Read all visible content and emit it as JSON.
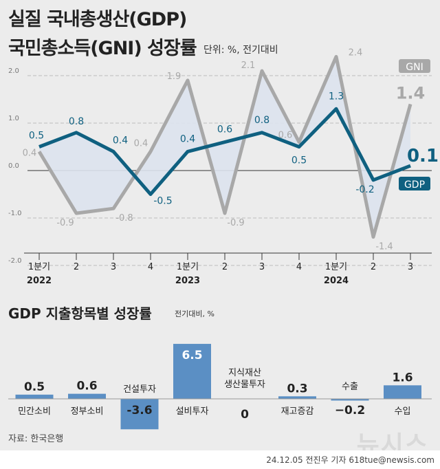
{
  "header": {
    "title_line1": "실질 국내총생산(GDP)",
    "title_line2": "국민총소득(GNI) 성장률",
    "unit": "단위: %, 전기대비"
  },
  "section2": {
    "title": "GDP 지출항목별 성장률",
    "unit": "전기대비, %"
  },
  "footer": {
    "source": "자료: 한국은행",
    "credit": "24.12.05 전진우 기자 618tue@newsis.com",
    "logo": "뉴시스"
  },
  "colors": {
    "gdp": "#0f6080",
    "gni": "#a8a8a8",
    "fill": "#dde3ee",
    "bar": "#5b8fc4",
    "background": "#ececec"
  },
  "chart_data": [
    {
      "type": "line",
      "categories": [
        "1분기",
        "2",
        "3",
        "4",
        "1분기",
        "2",
        "3",
        "4",
        "1분기",
        "2",
        "3"
      ],
      "years": [
        {
          "label": "2022",
          "index": 0
        },
        {
          "label": "2023",
          "index": 4
        },
        {
          "label": "2024",
          "index": 8
        }
      ],
      "yticks": [
        "2.0",
        "1.0",
        "0.0",
        "-1.0",
        "-2.0"
      ],
      "ylim": [
        -2.0,
        2.0
      ],
      "grid": true,
      "series": [
        {
          "name": "GDP",
          "values": [
            0.5,
            0.8,
            0.4,
            -0.5,
            0.4,
            0.6,
            0.8,
            0.5,
            1.3,
            -0.2,
            0.1
          ],
          "labels": [
            "0.5",
            "0.8",
            "0.4",
            "-0.5",
            "0.4",
            "0.6",
            "0.8",
            "0.5",
            "1.3",
            "-0.2",
            "0.1"
          ]
        },
        {
          "name": "GNI",
          "values": [
            0.4,
            -0.9,
            -0.8,
            0.4,
            1.9,
            -0.9,
            2.1,
            0.6,
            2.4,
            -1.4,
            1.4
          ],
          "labels": [
            "0.4",
            "-0.9",
            "-0.8",
            "0.4",
            "1.9",
            "-0.9",
            "2.1",
            "0.6",
            "2.4",
            "-1.4",
            "1.4"
          ]
        }
      ]
    },
    {
      "type": "bar",
      "categories": [
        "민간소비",
        "정부소비",
        "건설투자",
        "설비투자",
        "지식재산\n생산물투자",
        "재고증감",
        "수출",
        "수입"
      ],
      "values": [
        0.5,
        0.6,
        -3.6,
        6.5,
        0,
        0.3,
        -0.2,
        1.6
      ],
      "labels": [
        "0.5",
        "0.6",
        "-3.6",
        "6.5",
        "0",
        "0.3",
        "−0.2",
        "1.6"
      ]
    }
  ]
}
